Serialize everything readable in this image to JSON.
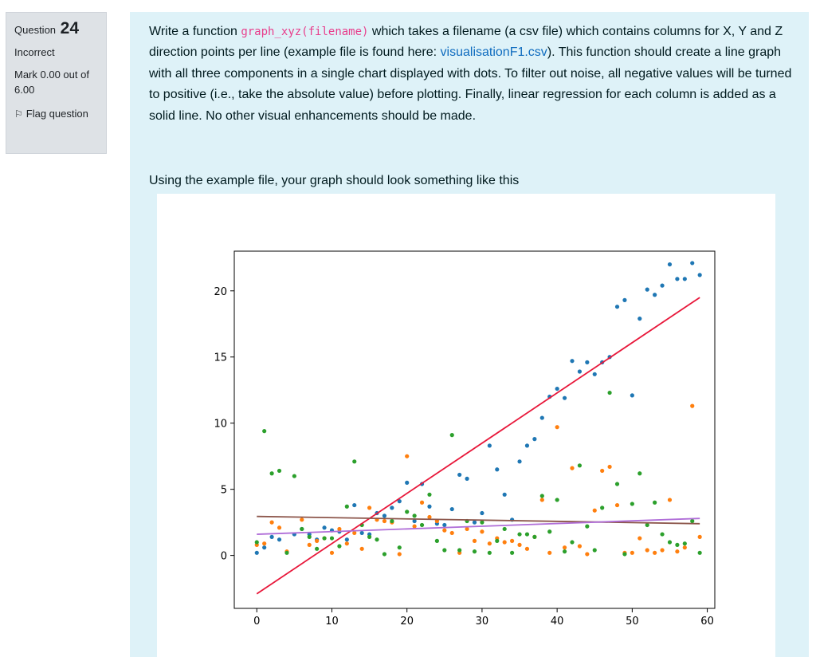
{
  "question_info": {
    "label": "Question",
    "number": "24",
    "state": "Incorrect",
    "grade": "Mark 0.00 out of 6.00",
    "flag_label": "Flag question",
    "flag_icon": "flag-icon"
  },
  "question": {
    "part1": "Write a function ",
    "code": "graph_xyz(filename)",
    "part2": " which takes a filename (a csv file) which contains columns for X, Y and Z direction points per line (example file is found here: ",
    "link_text": "visualisationF1.csv",
    "part3": "). This function should create a line graph with all three components in a single chart displayed with dots. To filter out noise, all negative values will be turned to positive (i.e., take the absolute value) before plotting. Finally, linear regression for each column is added as a solid line. No other visual enhancements should be made.",
    "using_text": "Using the example file, your graph should look something like this"
  },
  "colors": {
    "x": "#1f77b4",
    "y": "#ff7f0e",
    "z": "#2ca02c",
    "fit_x": "#e8173a",
    "fit_y": "#8c564b",
    "fit_z": "#b06ed8"
  },
  "chart_data": {
    "type": "scatter",
    "title": "",
    "xlabel": "",
    "ylabel": "",
    "xlim": [
      -3,
      61
    ],
    "ylim": [
      -4,
      23
    ],
    "xticks": [
      0,
      10,
      20,
      30,
      40,
      50,
      60
    ],
    "yticks": [
      0,
      5,
      10,
      15,
      20
    ],
    "grid": false,
    "legend": "none",
    "series": [
      {
        "color": "#1f77b4",
        "points": [
          [
            0,
            0.2
          ],
          [
            1,
            0.6
          ],
          [
            2,
            1.4
          ],
          [
            3,
            1.2
          ],
          [
            5,
            1.6
          ],
          [
            6,
            2.0
          ],
          [
            7,
            1.6
          ],
          [
            8,
            1.2
          ],
          [
            9,
            2.1
          ],
          [
            10,
            1.9
          ],
          [
            11,
            1.8
          ],
          [
            12,
            1.2
          ],
          [
            13,
            3.8
          ],
          [
            14,
            1.7
          ],
          [
            15,
            1.6
          ],
          [
            16,
            3.2
          ],
          [
            17,
            3.0
          ],
          [
            18,
            3.6
          ],
          [
            19,
            4.1
          ],
          [
            20,
            5.5
          ],
          [
            21,
            2.6
          ],
          [
            22,
            5.4
          ],
          [
            23,
            3.7
          ],
          [
            24,
            2.4
          ],
          [
            25,
            2.3
          ],
          [
            26,
            3.5
          ],
          [
            27,
            6.1
          ],
          [
            28,
            5.8
          ],
          [
            29,
            2.5
          ],
          [
            30,
            3.2
          ],
          [
            31,
            8.3
          ],
          [
            32,
            6.5
          ],
          [
            33,
            4.6
          ],
          [
            34,
            2.7
          ],
          [
            35,
            7.1
          ],
          [
            36,
            8.3
          ],
          [
            37,
            8.8
          ],
          [
            38,
            10.4
          ],
          [
            39,
            12.0
          ],
          [
            40,
            12.6
          ],
          [
            41,
            11.9
          ],
          [
            42,
            14.7
          ],
          [
            43,
            13.9
          ],
          [
            44,
            14.6
          ],
          [
            45,
            13.7
          ],
          [
            46,
            14.6
          ],
          [
            47,
            15.0
          ],
          [
            48,
            18.8
          ],
          [
            49,
            19.3
          ],
          [
            50,
            12.1
          ],
          [
            51,
            17.9
          ],
          [
            52,
            20.1
          ],
          [
            53,
            19.7
          ],
          [
            54,
            20.4
          ],
          [
            55,
            22.0
          ],
          [
            56,
            20.9
          ],
          [
            57,
            20.9
          ],
          [
            58,
            22.1
          ],
          [
            59,
            21.2
          ]
        ]
      },
      {
        "color": "#ff7f0e",
        "points": [
          [
            0,
            0.8
          ],
          [
            1,
            0.9
          ],
          [
            2,
            2.5
          ],
          [
            3,
            2.1
          ],
          [
            4,
            0.3
          ],
          [
            6,
            2.7
          ],
          [
            7,
            0.8
          ],
          [
            8,
            1.1
          ],
          [
            9,
            1.3
          ],
          [
            10,
            0.2
          ],
          [
            11,
            2.0
          ],
          [
            12,
            0.9
          ],
          [
            13,
            1.7
          ],
          [
            14,
            0.5
          ],
          [
            15,
            3.6
          ],
          [
            16,
            2.7
          ],
          [
            17,
            2.6
          ],
          [
            18,
            2.5
          ],
          [
            19,
            0.1
          ],
          [
            20,
            7.5
          ],
          [
            21,
            2.2
          ],
          [
            22,
            4.0
          ],
          [
            23,
            2.9
          ],
          [
            24,
            2.6
          ],
          [
            25,
            1.9
          ],
          [
            26,
            1.7
          ],
          [
            27,
            0.2
          ],
          [
            28,
            2.0
          ],
          [
            29,
            1.1
          ],
          [
            30,
            1.8
          ],
          [
            31,
            0.9
          ],
          [
            32,
            1.3
          ],
          [
            33,
            1.0
          ],
          [
            34,
            1.1
          ],
          [
            35,
            0.8
          ],
          [
            36,
            0.5
          ],
          [
            37,
            1.4
          ],
          [
            38,
            4.2
          ],
          [
            39,
            0.2
          ],
          [
            40,
            9.7
          ],
          [
            41,
            0.6
          ],
          [
            42,
            6.6
          ],
          [
            43,
            0.7
          ],
          [
            44,
            0.1
          ],
          [
            45,
            3.4
          ],
          [
            46,
            6.4
          ],
          [
            47,
            6.7
          ],
          [
            48,
            3.8
          ],
          [
            49,
            0.2
          ],
          [
            50,
            0.2
          ],
          [
            51,
            1.3
          ],
          [
            52,
            0.4
          ],
          [
            53,
            0.2
          ],
          [
            54,
            0.4
          ],
          [
            55,
            4.2
          ],
          [
            56,
            0.3
          ],
          [
            57,
            0.6
          ],
          [
            58,
            11.3
          ],
          [
            59,
            1.4
          ]
        ]
      },
      {
        "color": "#2ca02c",
        "points": [
          [
            0,
            1.0
          ],
          [
            1,
            9.4
          ],
          [
            2,
            6.2
          ],
          [
            3,
            6.4
          ],
          [
            4,
            0.2
          ],
          [
            5,
            6.0
          ],
          [
            6,
            2.0
          ],
          [
            7,
            1.4
          ],
          [
            8,
            0.5
          ],
          [
            9,
            1.3
          ],
          [
            10,
            1.3
          ],
          [
            11,
            0.7
          ],
          [
            12,
            3.7
          ],
          [
            13,
            7.1
          ],
          [
            14,
            2.3
          ],
          [
            15,
            1.4
          ],
          [
            16,
            1.2
          ],
          [
            17,
            0.1
          ],
          [
            18,
            2.6
          ],
          [
            19,
            0.6
          ],
          [
            20,
            3.3
          ],
          [
            21,
            3.0
          ],
          [
            22,
            2.3
          ],
          [
            23,
            4.6
          ],
          [
            24,
            1.1
          ],
          [
            25,
            0.4
          ],
          [
            26,
            9.1
          ],
          [
            27,
            0.4
          ],
          [
            28,
            2.6
          ],
          [
            29,
            0.3
          ],
          [
            30,
            2.5
          ],
          [
            31,
            0.2
          ],
          [
            32,
            1.1
          ],
          [
            33,
            2.0
          ],
          [
            34,
            0.2
          ],
          [
            35,
            1.6
          ],
          [
            36,
            1.6
          ],
          [
            37,
            1.4
          ],
          [
            38,
            4.5
          ],
          [
            39,
            1.8
          ],
          [
            40,
            4.2
          ],
          [
            41,
            0.3
          ],
          [
            42,
            1.0
          ],
          [
            43,
            6.8
          ],
          [
            44,
            2.2
          ],
          [
            45,
            0.4
          ],
          [
            46,
            3.6
          ],
          [
            47,
            12.3
          ],
          [
            48,
            5.4
          ],
          [
            49,
            0.1
          ],
          [
            50,
            3.9
          ],
          [
            51,
            6.2
          ],
          [
            52,
            2.3
          ],
          [
            53,
            4.0
          ],
          [
            54,
            1.6
          ],
          [
            55,
            1.0
          ],
          [
            56,
            0.8
          ],
          [
            57,
            0.9
          ],
          [
            58,
            2.6
          ],
          [
            59,
            0.2
          ]
        ]
      }
    ],
    "regression_lines": [
      {
        "color": "#e8173a",
        "x": [
          0,
          59
        ],
        "y": [
          -2.9,
          19.5
        ]
      },
      {
        "color": "#8c564b",
        "x": [
          0,
          59
        ],
        "y": [
          2.95,
          2.4
        ]
      },
      {
        "color": "#b06ed8",
        "x": [
          0,
          59
        ],
        "y": [
          1.6,
          2.8
        ]
      }
    ]
  }
}
